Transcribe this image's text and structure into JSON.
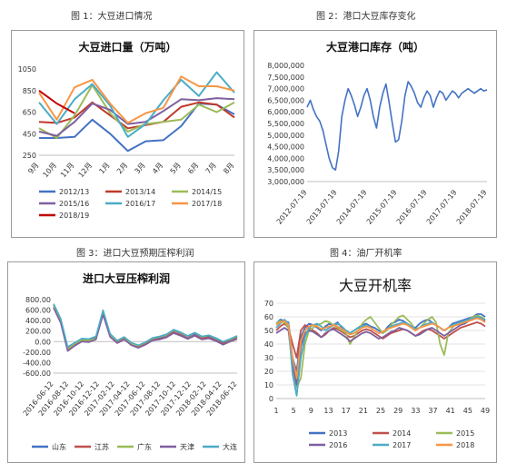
{
  "captions": {
    "fig1": "图 1：大豆进口情况",
    "fig2": "图 2：港口大豆库存变化",
    "fig3": "图 3：进口大豆预期压榨利润",
    "fig4": "图 4：油厂开机率"
  },
  "chart_data": [
    {
      "type": "line",
      "title": "大豆进口量（万吨）",
      "categories": [
        "9月",
        "10月",
        "11月",
        "12月",
        "1月",
        "2月",
        "3月",
        "4月",
        "5月",
        "6月",
        "7月",
        "8月"
      ],
      "yticks": [
        250,
        450,
        650,
        850,
        1050
      ],
      "ylim": [
        250,
        1050
      ],
      "legend_position": "bottom",
      "series": [
        {
          "name": "2012/13",
          "color": "#4472c4",
          "values": [
            410,
            410,
            420,
            580,
            450,
            290,
            380,
            390,
            520,
            730,
            720,
            630
          ]
        },
        {
          "name": "2013/14",
          "color": "#c0392b",
          "values": [
            560,
            550,
            600,
            740,
            620,
            500,
            530,
            560,
            700,
            740,
            720,
            600
          ]
        },
        {
          "name": "2014/15",
          "color": "#9bbb59",
          "values": [
            500,
            410,
            620,
            900,
            640,
            470,
            540,
            560,
            580,
            720,
            650,
            740
          ]
        },
        {
          "name": "2015/16",
          "color": "#7f5fa0",
          "values": [
            470,
            430,
            560,
            730,
            670,
            540,
            560,
            660,
            770,
            760,
            780,
            770
          ]
        },
        {
          "name": "2016/17",
          "color": "#4bacc6",
          "values": [
            740,
            540,
            770,
            910,
            710,
            420,
            540,
            760,
            950,
            800,
            1020,
            830
          ]
        },
        {
          "name": "2017/18",
          "color": "#f79646",
          "values": [
            830,
            580,
            880,
            950,
            730,
            550,
            640,
            690,
            980,
            890,
            890,
            850
          ]
        },
        {
          "name": "2018/19",
          "color": "#c00000",
          "values": [
            850,
            730,
            640,
            null,
            null,
            null,
            null,
            null,
            null,
            null,
            null,
            null
          ]
        }
      ]
    },
    {
      "type": "line",
      "title": "大豆港口库存（吨）",
      "x_ticks": [
        "2012-07-19",
        "2013-07-19",
        "2014-07-19",
        "2015-07-19",
        "2016-07-19",
        "2017-07-19",
        "2018-07-19"
      ],
      "yticks": [
        "3,000,000",
        "3,500,000",
        "4,000,000",
        "4,500,000",
        "5,000,000",
        "5,500,000",
        "6,000,000",
        "6,500,000",
        "7,000,000",
        "7,500,000",
        "8,000,000"
      ],
      "ylim": [
        3000000,
        8000000
      ],
      "series": [
        {
          "color": "#4472c4",
          "values": [
            6200000,
            6500000,
            6100000,
            5800000,
            5600000,
            5200000,
            4600000,
            4000000,
            3600000,
            3500000,
            4300000,
            5800000,
            6500000,
            7000000,
            6700000,
            6300000,
            5800000,
            6200000,
            6700000,
            7000000,
            6500000,
            5800000,
            5300000,
            6200000,
            6800000,
            7200000,
            6400000,
            5500000,
            4700000,
            4800000,
            5600000,
            6700000,
            7300000,
            7100000,
            6800000,
            6400000,
            6200000,
            6600000,
            6900000,
            6700000,
            6200000,
            6600000,
            6900000,
            6800000,
            6500000,
            6700000,
            6900000,
            6800000,
            6600000,
            6800000,
            6900000,
            7000000,
            6900000,
            6800000,
            6900000,
            7000000,
            6900000,
            6950000
          ]
        }
      ]
    },
    {
      "type": "line",
      "title": "进口大豆压榨利润",
      "x_ticks": [
        "2016-06-12",
        "2016-08-12",
        "2016-10-12",
        "2016-12-12",
        "2017-02-12",
        "2017-04-12",
        "2017-06-12",
        "2017-08-12",
        "2017-10-12",
        "2017-12-12",
        "2018-02-12",
        "2018-04-12",
        "2018-06-12"
      ],
      "yticks": [
        "800.00",
        "600.00",
        "400.00",
        "200.00",
        "0.00",
        "-200.00",
        "-400.00",
        "-600.00"
      ],
      "ylim": [
        -600,
        800
      ],
      "legend_position": "bottom",
      "series": [
        {
          "name": "山东",
          "color": "#4472c4",
          "values": [
            700,
            420,
            -120,
            -40,
            40,
            30,
            80,
            580,
            120,
            0,
            70,
            -40,
            -90,
            -30,
            40,
            70,
            120,
            210,
            160,
            90,
            150,
            80,
            100,
            50,
            -20,
            30,
            90
          ]
        },
        {
          "name": "江苏",
          "color": "#c0504d",
          "values": [
            660,
            380,
            -160,
            -60,
            10,
            0,
            50,
            530,
            100,
            -20,
            50,
            -60,
            -110,
            -50,
            30,
            50,
            90,
            180,
            130,
            60,
            120,
            60,
            80,
            20,
            -40,
            10,
            60
          ]
        },
        {
          "name": "广东",
          "color": "#9bbb59",
          "values": [
            690,
            400,
            -140,
            -40,
            30,
            20,
            60,
            560,
            130,
            10,
            80,
            -40,
            -80,
            -20,
            60,
            90,
            130,
            220,
            170,
            100,
            170,
            90,
            120,
            60,
            0,
            40,
            100
          ]
        },
        {
          "name": "天津",
          "color": "#7f5fa0",
          "values": [
            640,
            360,
            -180,
            -80,
            0,
            -10,
            40,
            510,
            90,
            -30,
            40,
            -70,
            -120,
            -60,
            20,
            40,
            80,
            160,
            110,
            50,
            110,
            40,
            60,
            10,
            -60,
            0,
            50
          ]
        },
        {
          "name": "大连",
          "color": "#4bacc6",
          "values": [
            720,
            440,
            -100,
            -20,
            60,
            50,
            100,
            600,
            150,
            20,
            90,
            -20,
            -70,
            -10,
            70,
            100,
            140,
            230,
            180,
            110,
            170,
            100,
            120,
            70,
            0,
            50,
            110
          ]
        }
      ]
    },
    {
      "type": "line",
      "title": "大豆开机率",
      "x_ticks": [
        "1",
        "5",
        "9",
        "13",
        "17",
        "21",
        "25",
        "29",
        "33",
        "37",
        "41",
        "45",
        "49"
      ],
      "yticks": [
        0,
        10,
        20,
        30,
        40,
        50,
        60,
        70
      ],
      "ylim": [
        0,
        70
      ],
      "legend_position": "bottom",
      "series": [
        {
          "name": "2013",
          "color": "#4472c4",
          "values": [
            55,
            58,
            57,
            56,
            30,
            20,
            45,
            52,
            55,
            54,
            52,
            50,
            53,
            55,
            54,
            56,
            52,
            50,
            48,
            50,
            52,
            54,
            55,
            53,
            52,
            50,
            48,
            52,
            55,
            56,
            58,
            57,
            55,
            53,
            52,
            55,
            57,
            58,
            56,
            54,
            52,
            50,
            52,
            55,
            56,
            57,
            58,
            59,
            60,
            62,
            62,
            60
          ]
        },
        {
          "name": "2014",
          "color": "#c0504d",
          "values": [
            50,
            53,
            55,
            52,
            40,
            30,
            50,
            54,
            52,
            50,
            48,
            45,
            47,
            50,
            52,
            51,
            49,
            47,
            45,
            46,
            48,
            50,
            51,
            50,
            48,
            46,
            44,
            46,
            48,
            49,
            50,
            51,
            50,
            48,
            46,
            48,
            50,
            51,
            50,
            48,
            46,
            44,
            46,
            48,
            50,
            52,
            53,
            54,
            55,
            56,
            55,
            53
          ]
        },
        {
          "name": "2015",
          "color": "#9bbb59",
          "values": [
            55,
            57,
            56,
            52,
            20,
            8,
            15,
            40,
            50,
            52,
            54,
            55,
            57,
            56,
            54,
            52,
            50,
            48,
            40,
            45,
            50,
            55,
            58,
            60,
            56,
            52,
            48,
            50,
            54,
            57,
            60,
            61,
            58,
            55,
            50,
            52,
            55,
            58,
            60,
            56,
            40,
            32,
            48,
            52,
            55,
            56,
            57,
            58,
            60,
            61,
            60,
            58
          ]
        },
        {
          "name": "2016",
          "color": "#7f5fa0",
          "values": [
            48,
            50,
            52,
            50,
            25,
            10,
            38,
            48,
            50,
            49,
            47,
            45,
            48,
            50,
            51,
            49,
            47,
            45,
            42,
            44,
            46,
            48,
            49,
            48,
            46,
            44,
            45,
            47,
            49,
            50,
            52,
            51,
            50,
            48,
            46,
            47,
            49,
            51,
            52,
            50,
            48,
            46,
            48,
            50,
            52,
            54,
            55,
            57,
            58,
            60,
            59,
            57
          ]
        },
        {
          "name": "2017",
          "color": "#4bacc6",
          "values": [
            52,
            55,
            58,
            55,
            18,
            2,
            30,
            45,
            52,
            54,
            55,
            53,
            50,
            52,
            54,
            55,
            53,
            50,
            48,
            50,
            52,
            53,
            54,
            52,
            50,
            48,
            49,
            51,
            53,
            54,
            55,
            56,
            55,
            53,
            51,
            52,
            54,
            55,
            56,
            54,
            52,
            50,
            52,
            54,
            55,
            56,
            57,
            58,
            59,
            60,
            59,
            58
          ]
        },
        {
          "name": "2018",
          "color": "#f79646",
          "values": [
            54,
            56,
            57,
            54,
            30,
            15,
            42,
            50,
            53,
            54,
            53,
            51,
            52,
            53,
            54,
            53,
            51,
            49,
            47,
            48,
            50,
            52,
            53,
            52,
            50,
            48,
            49,
            51,
            52,
            53,
            54,
            55,
            54,
            52,
            50,
            52,
            53,
            54,
            55,
            54,
            52,
            50,
            52,
            53,
            54,
            55,
            56,
            57,
            58,
            59,
            58,
            56
          ]
        }
      ]
    }
  ]
}
